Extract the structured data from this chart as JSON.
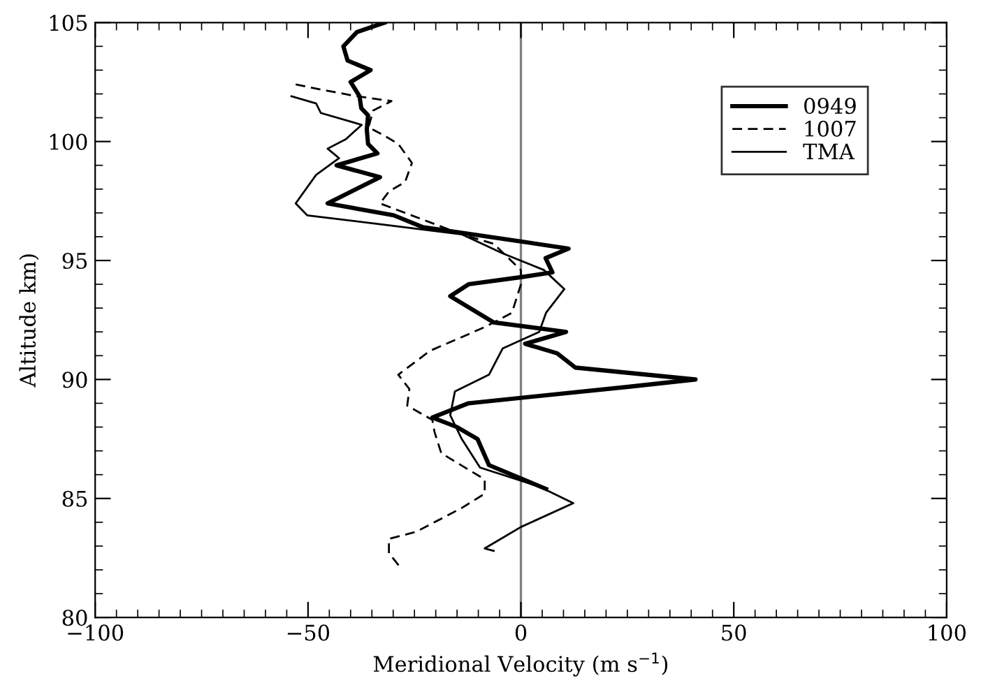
{
  "chart_data": {
    "type": "line",
    "xlabel": "Meridional Velocity (m s$^{−1}$)",
    "ylabel": "Altitude km)",
    "xlim": [
      -100,
      100
    ],
    "xticks": [
      -100,
      -50,
      0,
      50,
      100
    ],
    "ylim": [
      80,
      105
    ],
    "yticks": [
      80,
      85,
      90,
      95,
      100,
      105
    ],
    "grid": false,
    "legend": "top right",
    "marker": "none",
    "ref_lines": [
      {
        "axis": "x",
        "value": 0,
        "color": "#808080"
      }
    ],
    "series": [
      {
        "name": "0949",
        "color": "#000000",
        "line_style": "solid",
        "x": [
          -32,
          -38.5,
          -41.7,
          -40.7,
          -35.3,
          -40,
          -37.9,
          -37.5,
          -35.9,
          -36.2,
          -35.9,
          -33.7,
          -43.3,
          -33.1,
          -45.4,
          -29.9,
          -23,
          0,
          11.2,
          5.8,
          7.4,
          0,
          -12.3,
          -16.6,
          -6.4,
          10.6,
          1,
          8.5,
          12.8,
          41,
          25.6,
          -12.3,
          -20.8,
          -15,
          -10.2,
          -7.5,
          5.9
        ],
        "values": [
          105,
          104.6,
          104.0,
          103.4,
          103.0,
          102.5,
          101.9,
          101.4,
          101.1,
          100.5,
          99.9,
          99.5,
          99.0,
          98.5,
          97.4,
          96.9,
          96.4,
          95.8,
          95.5,
          95.1,
          94.5,
          94.3,
          94.0,
          93.5,
          92.4,
          92.0,
          91.5,
          91.1,
          90.5,
          90.0,
          89.7,
          89.0,
          88.4,
          88.0,
          87.5,
          86.4,
          85.4
        ]
      },
      {
        "name": "1007",
        "color": "#000000",
        "line_style": "dashed",
        "x": [
          -52.9,
          -47.5,
          -38.5,
          -30.4,
          -34.7,
          -35.8,
          -32.6,
          -28.8,
          -25.6,
          -27.2,
          -31,
          -33.1,
          -13.9,
          -6.4,
          0,
          0,
          -2.1,
          -8.5,
          -21.4,
          -28.8,
          -26.2,
          -26.7,
          -20.8,
          -20.3,
          -18.7,
          -8.5,
          -8.5,
          -13.9,
          -24.6,
          -31,
          -31,
          -28.3
        ],
        "values": [
          102.4,
          102.2,
          101.9,
          101.7,
          101.3,
          100.6,
          100.3,
          99.9,
          99.1,
          98.3,
          97.9,
          97.4,
          96.1,
          95.7,
          94.6,
          94.0,
          92.8,
          92.2,
          91.2,
          90.2,
          89.6,
          88.9,
          88.3,
          87.8,
          86.9,
          85.8,
          85.2,
          84.6,
          83.6,
          83.3,
          82.7,
          82.1
        ]
      },
      {
        "name": "TMA",
        "color": "#000000",
        "line_style": "solid",
        "x": [
          -53.9,
          -48.1,
          -47,
          -37.4,
          -41.1,
          -45.4,
          -42.7,
          -48.1,
          -52.9,
          -50.2,
          -32,
          -13.9,
          -4.3,
          5.4,
          10.2,
          5.9,
          4.3,
          -4.3,
          -7.5,
          -15.5,
          -16.6,
          -13.9,
          -9.6,
          4.3,
          12.3,
          0,
          -8.5,
          -6.4
        ],
        "values": [
          101.9,
          101.6,
          101.2,
          100.7,
          100.1,
          99.7,
          99.3,
          98.6,
          97.4,
          96.9,
          96.5,
          96.1,
          95.3,
          94.6,
          93.8,
          92.8,
          92.0,
          91.3,
          90.2,
          89.5,
          88.5,
          87.5,
          86.3,
          85.5,
          84.8,
          83.8,
          82.9,
          82.8
        ]
      }
    ]
  }
}
